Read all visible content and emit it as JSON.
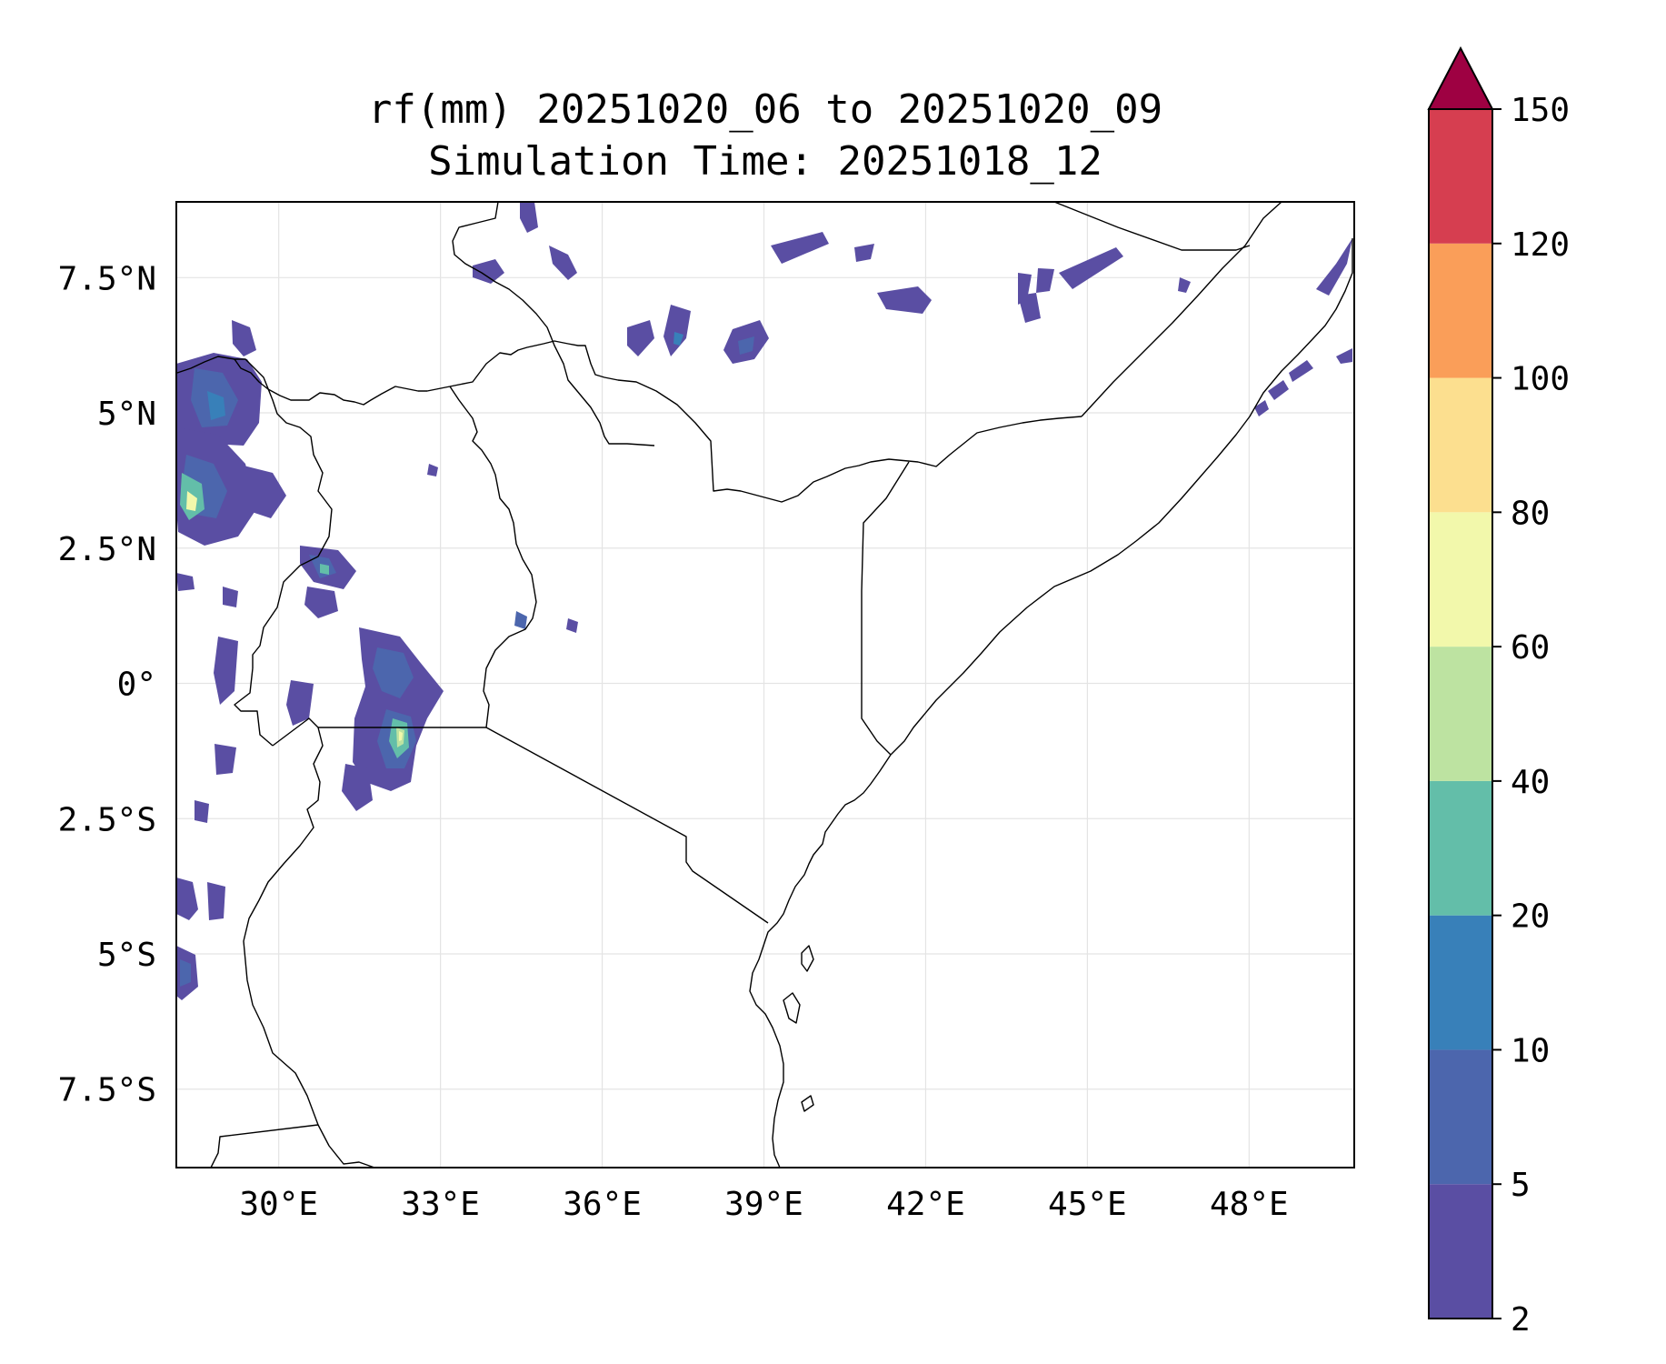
{
  "title": {
    "line1": "rf(mm) 20251020_06 to 20251020_09",
    "line2": "Simulation Time: 20251018_12"
  },
  "map": {
    "lon_ticks": [
      {
        "value": 30,
        "label": "30°E"
      },
      {
        "value": 33,
        "label": "33°E"
      },
      {
        "value": 36,
        "label": "36°E"
      },
      {
        "value": 39,
        "label": "39°E"
      },
      {
        "value": 42,
        "label": "42°E"
      },
      {
        "value": 45,
        "label": "45°E"
      },
      {
        "value": 48,
        "label": "48°E"
      }
    ],
    "lat_ticks": [
      {
        "value": 7.5,
        "label": "7.5°N"
      },
      {
        "value": 5,
        "label": "5°N"
      },
      {
        "value": 2.5,
        "label": "2.5°N"
      },
      {
        "value": 0,
        "label": "0°"
      },
      {
        "value": -2.5,
        "label": "2.5°S"
      },
      {
        "value": -5,
        "label": "5°S"
      },
      {
        "value": -7.5,
        "label": "7.5°S"
      }
    ],
    "extent": {
      "lon": [
        28.1,
        49.95
      ],
      "lat": [
        -8.95,
        8.9
      ]
    }
  },
  "colorbar": {
    "levels": [
      {
        "label": "2",
        "color": "#5a4ea3"
      },
      {
        "label": "5",
        "color": "#4c66ad"
      },
      {
        "label": "10",
        "color": "#3880b9"
      },
      {
        "label": "20",
        "color": "#63bea9"
      },
      {
        "label": "40",
        "color": "#bde3a1"
      },
      {
        "label": "60",
        "color": "#f2f8ab"
      },
      {
        "label": "80",
        "color": "#fcdf8f"
      },
      {
        "label": "100",
        "color": "#fa9e59"
      },
      {
        "label": "120",
        "color": "#d63e50"
      },
      {
        "label": "150",
        "color": null
      }
    ],
    "extend_color": "#9e0142"
  },
  "colors": {
    "rain_low": "#5a4ea3",
    "rain_mid": "#4c66ad",
    "rain_high": "#63bea9",
    "rain_peak": "#f2f8ab"
  }
}
